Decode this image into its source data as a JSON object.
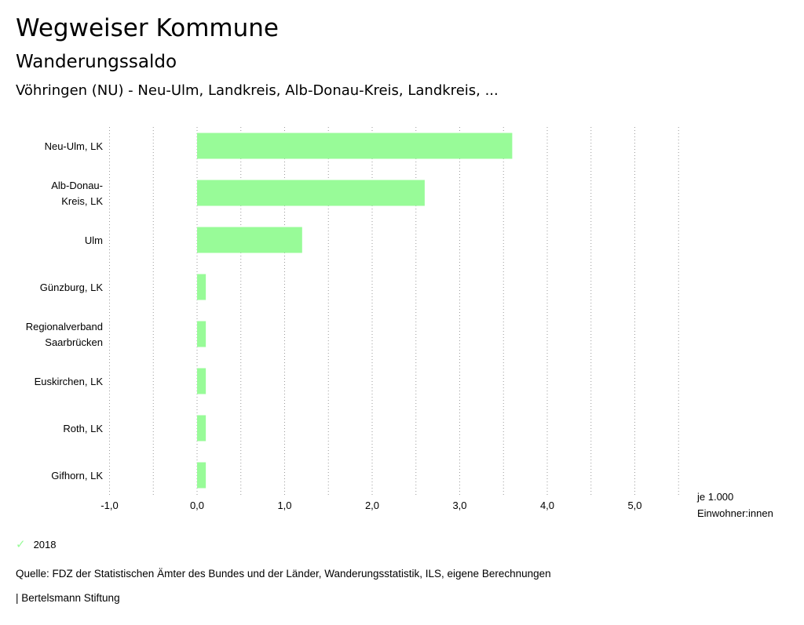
{
  "header": {
    "title": "Wegweiser Kommune",
    "subtitle": "Wanderungssaldo",
    "region": "Vöhringen (NU) - Neu-Ulm, Landkreis, Alb-Donau-Kreis, Landkreis, ..."
  },
  "chart_data": {
    "type": "bar",
    "orientation": "horizontal",
    "categories": [
      [
        "Neu-Ulm, LK"
      ],
      [
        "Alb-Donau-",
        "Kreis, LK"
      ],
      [
        "Ulm"
      ],
      [
        "Günzburg, LK"
      ],
      [
        "Regionalverband",
        "Saarbrücken"
      ],
      [
        "Euskirchen, LK"
      ],
      [
        "Roth, LK"
      ],
      [
        "Gifhorn, LK"
      ]
    ],
    "series": [
      {
        "name": "2018",
        "color": "#98fb98",
        "values": [
          3.6,
          2.6,
          1.2,
          0.1,
          0.1,
          0.1,
          0.1,
          0.1
        ]
      }
    ],
    "xlim": [
      -1.0,
      5.5
    ],
    "xticks": [
      -1.0,
      0.0,
      1.0,
      2.0,
      3.0,
      4.0,
      5.0
    ],
    "xtick_labels": [
      "-1,0",
      "0,0",
      "1,0",
      "2,0",
      "3,0",
      "4,0",
      "5,0"
    ],
    "unit_label": [
      "je 1.000",
      "Einwohner:innen"
    ],
    "grid": "vertical dotted"
  },
  "legend": {
    "label": "2018",
    "icon": "check-icon"
  },
  "footer": {
    "source": "Quelle: FDZ der Statistischen Ämter des Bundes und der Länder, Wanderungsstatistik, ILS, eigene Berechnungen",
    "publisher": "| Bertelsmann Stiftung"
  }
}
